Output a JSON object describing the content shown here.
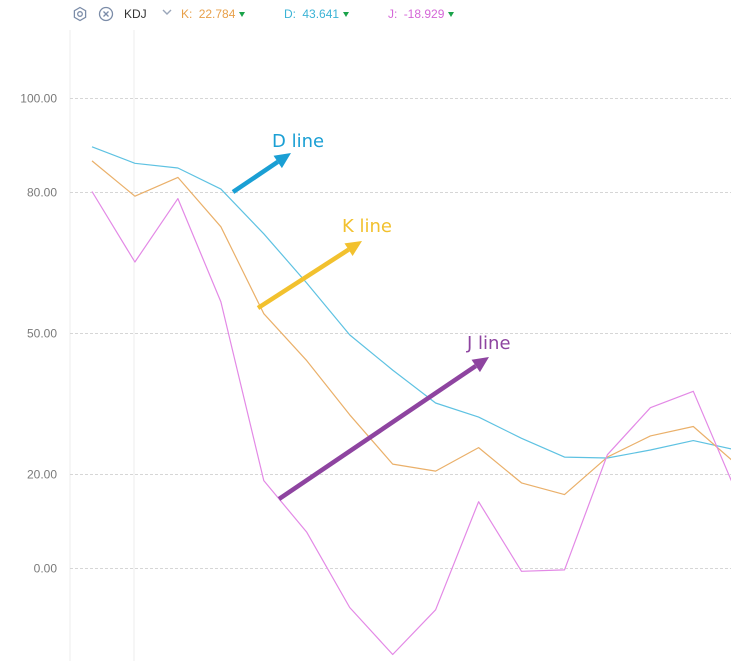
{
  "toolbar": {
    "settings_icon": "gear-icon",
    "close_icon": "close-circle-icon",
    "indicator": "KDJ",
    "dropdown_icon": "chevron-down-icon",
    "k": {
      "label": "K:",
      "value": "22.784",
      "color": "#e8a04a"
    },
    "d": {
      "label": "D:",
      "value": "43.641",
      "color": "#3bb3d6"
    },
    "j": {
      "label": "J:",
      "value": "-18.929",
      "color": "#d567d8"
    },
    "trend_color": "#1aa34a"
  },
  "annotations": {
    "d_label": "D line",
    "k_label": "K line",
    "j_label": "J line",
    "d_color": "#1a9fd4",
    "k_color": "#f2c12e",
    "j_color": "#8e44a0"
  },
  "chart_data": {
    "type": "line",
    "x": [
      0,
      1,
      2,
      3,
      4,
      5,
      6,
      7,
      8,
      9,
      10,
      11,
      12,
      13,
      14,
      15,
      16
    ],
    "ytick_labels": [
      "100.00",
      "80.00",
      "50.00",
      "20.00",
      "0.00"
    ],
    "ytick_values": [
      100,
      80,
      50,
      20,
      0
    ],
    "ylim": [
      -20,
      110
    ],
    "grid": true,
    "series": [
      {
        "name": "D",
        "color": "#5ec2e2",
        "values": [
          89.5,
          86.0,
          85.0,
          80.5,
          71.0,
          60.5,
          49.5,
          42.0,
          35.0,
          32.0,
          27.5,
          23.5,
          23.3,
          25.0,
          27.0,
          25.0,
          23.5
        ]
      },
      {
        "name": "K",
        "color": "#eab06a",
        "values": [
          86.5,
          79.0,
          83.0,
          72.5,
          54.0,
          44.0,
          32.5,
          22.0,
          20.5,
          25.5,
          18.0,
          15.5,
          23.5,
          28.0,
          30.0,
          22.0,
          14.0
        ]
      },
      {
        "name": "J",
        "color": "#e389e6",
        "values": [
          80.0,
          65.0,
          78.5,
          56.5,
          18.5,
          7.5,
          -8.5,
          -18.5,
          -9.0,
          14.0,
          -0.8,
          -0.5,
          24.0,
          34.0,
          37.5,
          16.0,
          8.0
        ]
      }
    ]
  }
}
